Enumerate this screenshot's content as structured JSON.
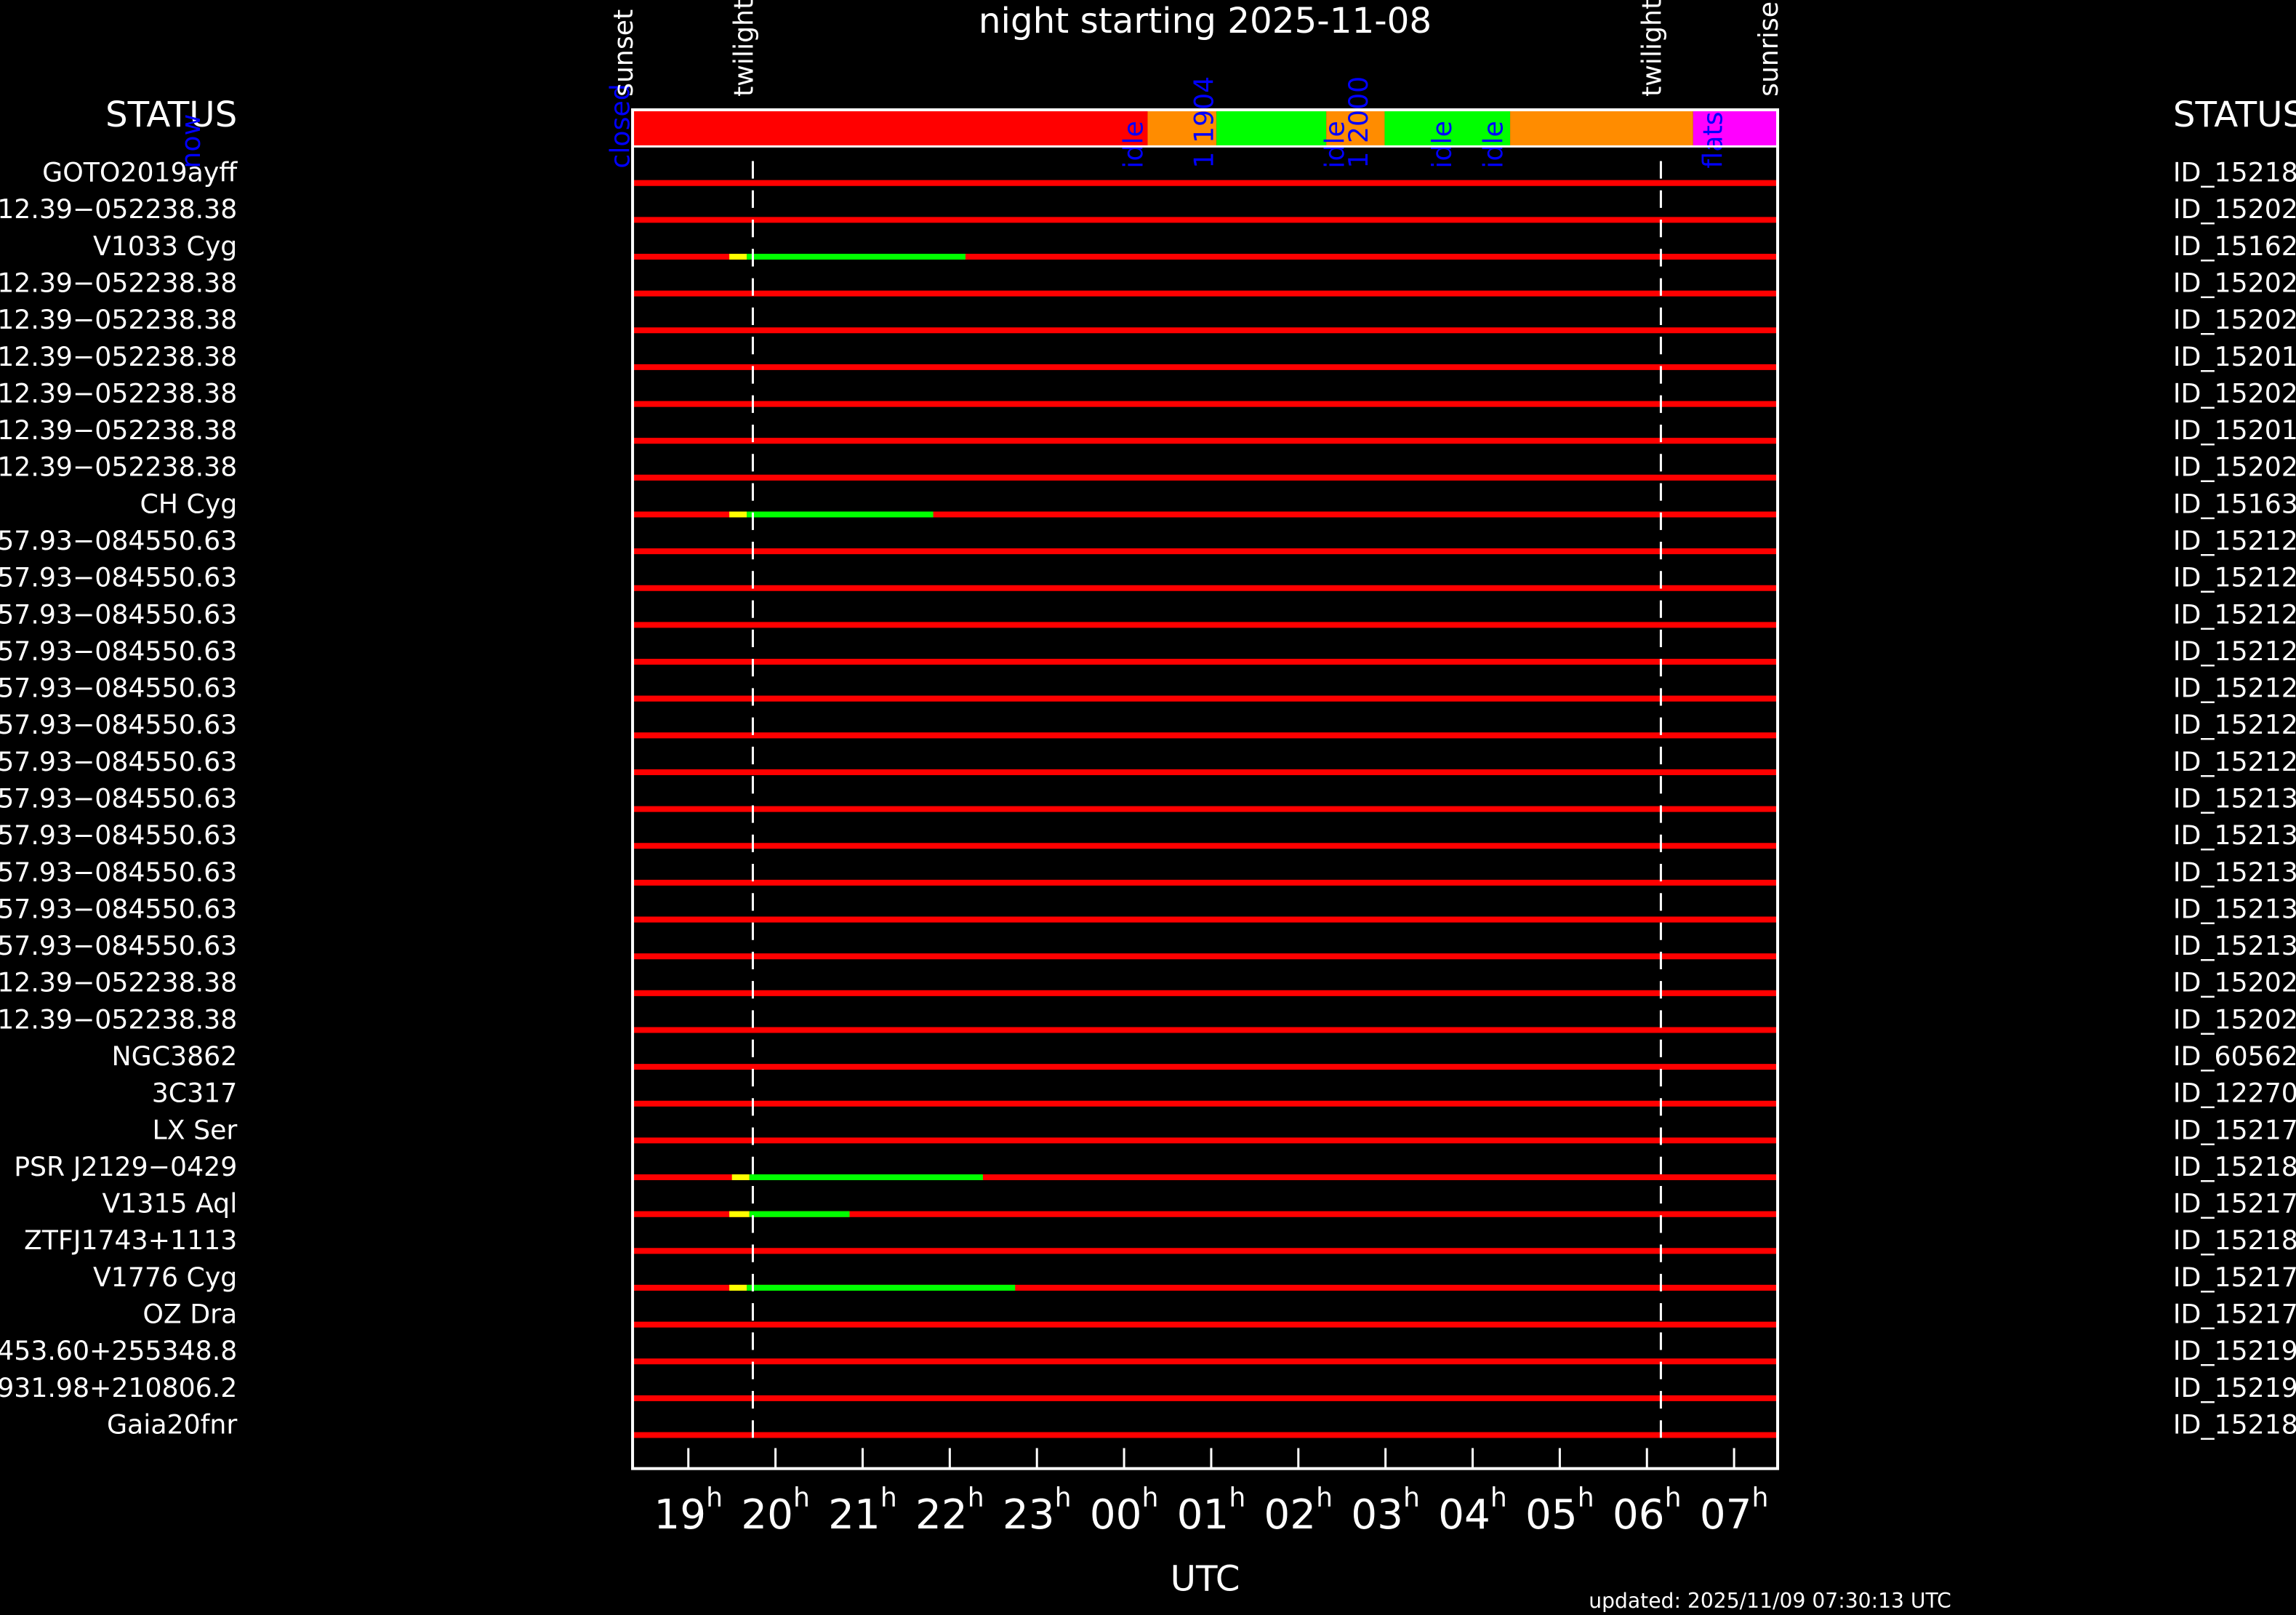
{
  "chart_data": {
    "type": "gantt",
    "title": "night starting 2025-11-08",
    "xlabel": "UTC",
    "footer": "updated: 2025/11/09 07:30:13 UTC",
    "left_header": "STATUS",
    "right_header": "STATUS",
    "xlim": [
      18.36,
      31.5
    ],
    "xticks": [
      {
        "value": 19,
        "label": "19",
        "sup": "h"
      },
      {
        "value": 20,
        "label": "20",
        "sup": "h"
      },
      {
        "value": 21,
        "label": "21",
        "sup": "h"
      },
      {
        "value": 22,
        "label": "22",
        "sup": "h"
      },
      {
        "value": 23,
        "label": "23",
        "sup": "h"
      },
      {
        "value": 24,
        "label": "00",
        "sup": "h"
      },
      {
        "value": 25,
        "label": "01",
        "sup": "h"
      },
      {
        "value": 26,
        "label": "02",
        "sup": "h"
      },
      {
        "value": 27,
        "label": "03",
        "sup": "h"
      },
      {
        "value": 28,
        "label": "04",
        "sup": "h"
      },
      {
        "value": 29,
        "label": "05",
        "sup": "h"
      },
      {
        "value": 30,
        "label": "06",
        "sup": "h"
      },
      {
        "value": 31,
        "label": "07",
        "sup": "h"
      }
    ],
    "row_color": "#ff0000",
    "events": [
      {
        "label": "sunset",
        "x": 18.36,
        "dashed": false
      },
      {
        "label": "twilight",
        "x": 19.74,
        "dashed": true
      },
      {
        "label": "twilight",
        "x": 30.16,
        "dashed": true
      },
      {
        "label": "sunrise",
        "x": 31.5,
        "dashed": false
      }
    ],
    "status_bar": [
      {
        "start": 18.36,
        "end": 24.27,
        "color": "#ff0000"
      },
      {
        "start": 24.27,
        "end": 25.06,
        "color": "#ff8c00"
      },
      {
        "start": 25.06,
        "end": 26.32,
        "color": "#00ff00"
      },
      {
        "start": 26.32,
        "end": 26.99,
        "color": "#ff8c00"
      },
      {
        "start": 26.99,
        "end": 28.43,
        "color": "#00ff00"
      },
      {
        "start": 28.43,
        "end": 30.53,
        "color": "#ff8c00"
      },
      {
        "start": 30.53,
        "end": 31.5,
        "color": "#ff00ff"
      }
    ],
    "status_label_color": "#0000ff",
    "status_labels": [
      {
        "label": "now",
        "x": 13.31
      },
      {
        "label": "closed",
        "x": 18.24
      },
      {
        "label": "idle",
        "x": 24.13
      },
      {
        "label": "1 1904",
        "x": 24.94
      },
      {
        "label": "idle",
        "x": 26.44
      },
      {
        "label": "1 2000",
        "x": 26.71
      },
      {
        "label": "idle",
        "x": 27.67
      },
      {
        "label": "idle",
        "x": 28.26
      },
      {
        "label": "flats",
        "x": 30.78
      }
    ],
    "rows": [
      {
        "name": "GOTO2019ayff",
        "id": "ID_15218",
        "segments": []
      },
      {
        "name": "12.39−052238.38",
        "id": "ID_15202",
        "segments": []
      },
      {
        "name": "V1033 Cyg",
        "id": "ID_15162",
        "segments": [
          {
            "start": 19.47,
            "end": 19.67,
            "color": "#ffff00"
          },
          {
            "start": 19.67,
            "end": 22.18,
            "color": "#00ff00"
          }
        ]
      },
      {
        "name": "12.39−052238.38",
        "id": "ID_15202",
        "segments": []
      },
      {
        "name": "12.39−052238.38",
        "id": "ID_15202",
        "segments": []
      },
      {
        "name": "12.39−052238.38",
        "id": "ID_15201",
        "segments": []
      },
      {
        "name": "12.39−052238.38",
        "id": "ID_15202",
        "segments": []
      },
      {
        "name": "12.39−052238.38",
        "id": "ID_15201",
        "segments": []
      },
      {
        "name": "12.39−052238.38",
        "id": "ID_15202",
        "segments": []
      },
      {
        "name": "CH Cyg",
        "id": "ID_15163",
        "segments": [
          {
            "start": 19.47,
            "end": 19.67,
            "color": "#ffff00"
          },
          {
            "start": 19.67,
            "end": 21.81,
            "color": "#00ff00"
          }
        ]
      },
      {
        "name": "57.93−084550.63",
        "id": "ID_15212",
        "segments": []
      },
      {
        "name": "57.93−084550.63",
        "id": "ID_15212",
        "segments": []
      },
      {
        "name": "57.93−084550.63",
        "id": "ID_15212",
        "segments": []
      },
      {
        "name": "57.93−084550.63",
        "id": "ID_15212",
        "segments": []
      },
      {
        "name": "57.93−084550.63",
        "id": "ID_15212",
        "segments": []
      },
      {
        "name": "57.93−084550.63",
        "id": "ID_15212",
        "segments": []
      },
      {
        "name": "57.93−084550.63",
        "id": "ID_15212",
        "segments": []
      },
      {
        "name": "57.93−084550.63",
        "id": "ID_15213",
        "segments": []
      },
      {
        "name": "57.93−084550.63",
        "id": "ID_15213",
        "segments": []
      },
      {
        "name": "57.93−084550.63",
        "id": "ID_15213",
        "segments": []
      },
      {
        "name": "57.93−084550.63",
        "id": "ID_15213",
        "segments": []
      },
      {
        "name": "57.93−084550.63",
        "id": "ID_15213",
        "segments": []
      },
      {
        "name": "12.39−052238.38",
        "id": "ID_15202",
        "segments": []
      },
      {
        "name": "12.39−052238.38",
        "id": "ID_15202",
        "segments": []
      },
      {
        "name": "NGC3862",
        "id": "ID_60562",
        "segments": []
      },
      {
        "name": "3C317",
        "id": "ID_12270",
        "segments": []
      },
      {
        "name": "LX Ser",
        "id": "ID_15217",
        "segments": []
      },
      {
        "name": "PSR J2129−0429",
        "id": "ID_15218",
        "segments": [
          {
            "start": 19.5,
            "end": 19.7,
            "color": "#ffff00"
          },
          {
            "start": 19.7,
            "end": 22.38,
            "color": "#00ff00"
          }
        ]
      },
      {
        "name": "V1315 Aql",
        "id": "ID_15217",
        "segments": [
          {
            "start": 19.47,
            "end": 19.7,
            "color": "#ffff00"
          },
          {
            "start": 19.7,
            "end": 20.85,
            "color": "#00ff00"
          }
        ]
      },
      {
        "name": "ZTFJ1743+1113",
        "id": "ID_15218",
        "segments": []
      },
      {
        "name": "V1776 Cyg",
        "id": "ID_15217",
        "segments": [
          {
            "start": 19.47,
            "end": 19.67,
            "color": "#ffff00"
          },
          {
            "start": 19.67,
            "end": 22.75,
            "color": "#00ff00"
          }
        ]
      },
      {
        "name": "OZ Dra",
        "id": "ID_15217",
        "segments": []
      },
      {
        "name": "453.60+255348.8",
        "id": "ID_15219",
        "segments": []
      },
      {
        "name": "931.98+210806.2",
        "id": "ID_15219",
        "segments": []
      },
      {
        "name": "Gaia20fnr",
        "id": "ID_15218",
        "segments": []
      }
    ]
  }
}
